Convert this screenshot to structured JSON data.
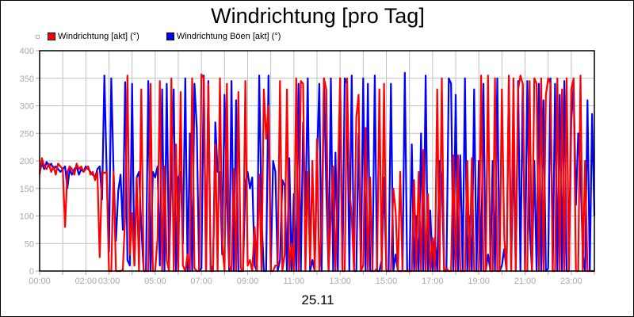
{
  "title": "Windrichtung [pro Tag]",
  "date_label": "25.11",
  "legend": [
    {
      "label": "Windrichtung [akt] (°)",
      "color": "#ff0000"
    },
    {
      "label": "Windrichtung Böen [akt] (°)",
      "color": "#0000ff"
    }
  ],
  "chart_data": {
    "type": "line",
    "title": "Windrichtung [pro Tag]",
    "xlabel": "25.11",
    "ylabel": "",
    "ylim": [
      0,
      400
    ],
    "xlim_hours": [
      0,
      24
    ],
    "grid": true,
    "legend_position": "top-left",
    "y_ticks": [
      0,
      50,
      100,
      150,
      200,
      250,
      300,
      350,
      400
    ],
    "x_tick_labels": [
      {
        "hour": 0,
        "label": "00:00"
      },
      {
        "hour": 2,
        "label": "02:00"
      },
      {
        "hour": 3,
        "label": "03:00"
      },
      {
        "hour": 5,
        "label": "05:00"
      },
      {
        "hour": 7,
        "label": "07:00"
      },
      {
        "hour": 9,
        "label": "09:00"
      },
      {
        "hour": 11,
        "label": "11:00"
      },
      {
        "hour": 13,
        "label": "13:00"
      },
      {
        "hour": 15,
        "label": "15:00"
      },
      {
        "hour": 17,
        "label": "17:00"
      },
      {
        "hour": 19,
        "label": "19:00"
      },
      {
        "hour": 21,
        "label": "21:00"
      },
      {
        "hour": 23,
        "label": "23:00"
      }
    ],
    "series": [
      {
        "name": "Windrichtung [akt] (°)",
        "color": "#ff0000",
        "x_hours": [
          0,
          0.1,
          0.2,
          0.3,
          0.4,
          0.5,
          0.6,
          0.7,
          0.8,
          0.9,
          1.0,
          1.1,
          1.2,
          1.3,
          1.4,
          1.5,
          1.6,
          1.7,
          1.8,
          1.9,
          2.0,
          2.1,
          2.2,
          2.3,
          2.4,
          2.5,
          2.6,
          2.7,
          2.8,
          2.9,
          3.0,
          3.1,
          3.2,
          3.3,
          3.4,
          3.5,
          3.6,
          3.7,
          3.8,
          3.9,
          4.0,
          4.1,
          4.2,
          4.3,
          4.4,
          4.5,
          4.6,
          4.7,
          4.8,
          4.9,
          5.0,
          5.1,
          5.2,
          5.3,
          5.4,
          5.5,
          5.6,
          5.7,
          5.8,
          5.9,
          6.0,
          6.1,
          6.2,
          6.3,
          6.4,
          6.5,
          6.6,
          6.7,
          6.8,
          6.9,
          7.0,
          7.1,
          7.2,
          7.3,
          7.4,
          7.5,
          7.6,
          7.7,
          7.8,
          7.9,
          8.0,
          8.1,
          8.2,
          8.3,
          8.4,
          8.5,
          8.6,
          8.7,
          8.8,
          8.9,
          9.0,
          9.1,
          9.2,
          9.3,
          9.4,
          9.5,
          9.6,
          9.7,
          9.8,
          9.9,
          10.0,
          10.1,
          10.2,
          10.3,
          10.4,
          10.5,
          10.6,
          10.7,
          10.8,
          10.9,
          11.0,
          11.1,
          11.2,
          11.3,
          11.4,
          11.5,
          11.6,
          11.7,
          11.8,
          11.9,
          12.0,
          12.1,
          12.2,
          12.3,
          12.4,
          12.5,
          12.6,
          12.7,
          12.8,
          12.9,
          13.0,
          13.1,
          13.2,
          13.3,
          13.4,
          13.5,
          13.6,
          13.7,
          13.8,
          13.9,
          14.0,
          14.1,
          14.2,
          14.3,
          14.4,
          14.5,
          14.6,
          14.7,
          14.8,
          14.9,
          15.0,
          15.1,
          15.2,
          15.3,
          15.4,
          15.5,
          15.6,
          15.7,
          15.8,
          15.9,
          16.0,
          16.1,
          16.2,
          16.3,
          16.4,
          16.5,
          16.6,
          16.7,
          16.8,
          16.9,
          17.0,
          17.1,
          17.2,
          17.3,
          17.4,
          17.5,
          17.6,
          17.7,
          17.8,
          17.9,
          18.0,
          18.1,
          18.2,
          18.3,
          18.4,
          18.5,
          18.6,
          18.7,
          18.8,
          18.9,
          19.0,
          19.1,
          19.2,
          19.3,
          19.4,
          19.5,
          19.6,
          19.7,
          19.8,
          19.9,
          20.0,
          20.1,
          20.2,
          20.3,
          20.4,
          20.5,
          20.6,
          20.7,
          20.8,
          20.9,
          21.0,
          21.1,
          21.2,
          21.3,
          21.4,
          21.5,
          21.6,
          21.7,
          21.8,
          21.9,
          22.0,
          22.1,
          22.2,
          22.3,
          22.4,
          22.5,
          22.6,
          22.7,
          22.8,
          22.9,
          23.0,
          23.1,
          23.2,
          23.3,
          23.4,
          23.5,
          23.6,
          23.7,
          23.8,
          23.9,
          24.0
        ],
        "values": [
          175,
          205,
          190,
          185,
          195,
          180,
          190,
          175,
          195,
          190,
          185,
          80,
          180,
          190,
          185,
          175,
          195,
          185,
          190,
          180,
          185,
          190,
          175,
          180,
          165,
          180,
          25,
          180,
          178,
          180,
          0,
          0,
          180,
          0,
          0,
          0,
          2,
          100,
          355,
          30,
          105,
          10,
          170,
          0,
          330,
          0,
          0,
          0,
          340,
          0,
          0,
          60,
          345,
          0,
          190,
          20,
          0,
          350,
          0,
          230,
          0,
          325,
          10,
          0,
          30,
          0,
          350,
          5,
          0,
          0,
          357,
          350,
          0,
          340,
          0,
          0,
          230,
          0,
          350,
          50,
          0,
          340,
          10,
          0,
          185,
          0,
          325,
          5,
          0,
          345,
          10,
          20,
          0,
          80,
          0,
          175,
          0,
          330,
          240,
          300,
          0,
          0,
          10,
          10,
          345,
          0,
          30,
          330,
          0,
          50,
          0,
          350,
          0,
          345,
          340,
          0,
          180,
          10,
          200,
          0,
          240,
          0,
          80,
          350,
          330,
          0,
          100,
          190,
          0,
          160,
          350,
          0,
          0,
          350,
          150,
          100,
          0,
          280,
          320,
          0,
          10,
          260,
          0,
          170,
          0,
          0,
          5,
          330,
          0,
          340,
          0,
          0,
          0,
          150,
          110,
          0,
          180,
          0,
          0,
          0,
          0,
          0,
          165,
          0,
          180,
          0,
          220,
          0,
          140,
          0,
          60,
          0,
          330,
          0,
          350,
          0,
          5,
          0,
          0,
          210,
          0,
          210,
          0,
          0,
          0,
          200,
          0,
          205,
          0,
          0,
          0,
          355,
          0,
          0,
          355,
          0,
          0,
          350,
          0,
          0,
          330,
          60,
          0,
          355,
          0,
          350,
          0,
          330,
          355,
          340,
          0,
          0,
          345,
          0,
          350,
          340,
          0,
          350,
          0,
          320,
          350,
          340,
          0,
          0,
          350,
          0,
          330,
          0,
          350,
          0,
          330,
          350,
          0,
          0,
          355,
          0,
          200,
          0,
          0,
          0,
          0,
          4,
          0,
          0,
          180,
          185,
          0,
          40
        ]
      },
      {
        "name": "Windrichtung Böen [akt] (°)",
        "color": "#0000ff",
        "x_hours": [
          0,
          0.1,
          0.2,
          0.3,
          0.4,
          0.5,
          0.6,
          0.7,
          0.8,
          0.9,
          1.0,
          1.1,
          1.2,
          1.3,
          1.4,
          1.5,
          1.6,
          1.7,
          1.8,
          1.9,
          2.0,
          2.1,
          2.2,
          2.3,
          2.4,
          2.5,
          2.6,
          2.7,
          2.8,
          2.9,
          3.0,
          3.1,
          3.2,
          3.3,
          3.4,
          3.5,
          3.6,
          3.7,
          3.8,
          3.9,
          4.0,
          4.1,
          4.2,
          4.3,
          4.4,
          4.5,
          4.6,
          4.7,
          4.8,
          4.9,
          5.0,
          5.1,
          5.2,
          5.3,
          5.4,
          5.5,
          5.6,
          5.7,
          5.8,
          5.9,
          6.0,
          6.1,
          6.2,
          6.3,
          6.4,
          6.5,
          6.6,
          6.7,
          6.8,
          6.9,
          7.0,
          7.1,
          7.2,
          7.3,
          7.4,
          7.5,
          7.6,
          7.7,
          7.8,
          7.9,
          8.0,
          8.1,
          8.2,
          8.3,
          8.4,
          8.5,
          8.6,
          8.7,
          8.8,
          8.9,
          9.0,
          9.1,
          9.2,
          9.3,
          9.4,
          9.5,
          9.6,
          9.7,
          9.8,
          9.9,
          10.0,
          10.1,
          10.2,
          10.3,
          10.4,
          10.5,
          10.6,
          10.7,
          10.8,
          10.9,
          11.0,
          11.1,
          11.2,
          11.3,
          11.4,
          11.5,
          11.6,
          11.7,
          11.8,
          11.9,
          12.0,
          12.1,
          12.2,
          12.3,
          12.4,
          12.5,
          12.6,
          12.7,
          12.8,
          12.9,
          13.0,
          13.1,
          13.2,
          13.3,
          13.4,
          13.5,
          13.6,
          13.7,
          13.8,
          13.9,
          14.0,
          14.1,
          14.2,
          14.3,
          14.4,
          14.5,
          14.6,
          14.7,
          14.8,
          14.9,
          15.0,
          15.1,
          15.2,
          15.3,
          15.4,
          15.5,
          15.6,
          15.7,
          15.8,
          15.9,
          16.0,
          16.1,
          16.2,
          16.3,
          16.4,
          16.5,
          16.6,
          16.7,
          16.8,
          16.9,
          17.0,
          17.1,
          17.2,
          17.3,
          17.4,
          17.5,
          17.6,
          17.7,
          17.8,
          17.9,
          18.0,
          18.1,
          18.2,
          18.3,
          18.4,
          18.5,
          18.6,
          18.7,
          18.8,
          18.9,
          19.0,
          19.1,
          19.2,
          19.3,
          19.4,
          19.5,
          19.6,
          19.7,
          19.8,
          19.9,
          20.0,
          20.1,
          20.2,
          20.3,
          20.4,
          20.5,
          20.6,
          20.7,
          20.8,
          20.9,
          21.0,
          21.1,
          21.2,
          21.3,
          21.4,
          21.5,
          21.6,
          21.7,
          21.8,
          21.9,
          22.0,
          22.1,
          22.2,
          22.3,
          22.4,
          22.5,
          22.6,
          22.7,
          22.8,
          22.9,
          23.0,
          23.1,
          23.2,
          23.3,
          23.4,
          23.5,
          23.6,
          23.7,
          23.8,
          23.9,
          24.0
        ],
        "values": [
          180,
          195,
          185,
          198,
          190,
          195,
          185,
          190,
          185,
          180,
          185,
          190,
          150,
          185,
          175,
          185,
          190,
          175,
          185,
          180,
          190,
          185,
          180,
          175,
          170,
          185,
          190,
          130,
          355,
          180,
          35,
          350,
          180,
          55,
          145,
          175,
          75,
          343,
          20,
          10,
          340,
          10,
          170,
          180,
          80,
          0,
          0,
          345,
          0,
          180,
          170,
          190,
          10,
          330,
          0,
          340,
          10,
          180,
          330,
          0,
          170,
          180,
          50,
          350,
          0,
          250,
          0,
          340,
          260,
          0,
          5,
          355,
          0,
          345,
          10,
          0,
          270,
          180,
          180,
          30,
          320,
          140,
          0,
          345,
          0,
          310,
          0,
          0,
          0,
          160,
          180,
          150,
          170,
          10,
          0,
          355,
          100,
          0,
          0,
          355,
          0,
          200,
          180,
          0,
          20,
          165,
          155,
          0,
          205,
          0,
          140,
          0,
          340,
          0,
          270,
          100,
          350,
          0,
          20,
          0,
          200,
          340,
          0,
          350,
          150,
          0,
          350,
          0,
          215,
          0,
          350,
          0,
          350,
          340,
          0,
          355,
          0,
          0,
          250,
          0,
          350,
          0,
          340,
          0,
          0,
          355,
          0,
          0,
          20,
          170,
          0,
          0,
          340,
          0,
          30,
          0,
          0,
          0,
          360,
          0,
          0,
          230,
          0,
          100,
          0,
          250,
          0,
          355,
          0,
          110,
          0,
          60,
          0,
          200,
          170,
          0,
          0,
          350,
          340,
          0,
          320,
          0,
          210,
          0,
          350,
          0,
          100,
          0,
          330,
          0,
          200,
          0,
          340,
          0,
          30,
          0,
          200,
          0,
          350,
          0,
          10,
          40,
          0,
          350,
          0,
          230,
          0,
          345,
          0,
          340,
          0,
          345,
          80,
          0,
          200,
          0,
          340,
          0,
          310,
          0,
          5,
          350,
          0,
          340,
          0,
          320,
          0,
          345,
          0,
          0,
          270,
          340,
          120,
          250,
          180,
          30,
          0,
          310,
          0,
          285,
          100,
          0,
          80
        ]
      }
    ]
  }
}
